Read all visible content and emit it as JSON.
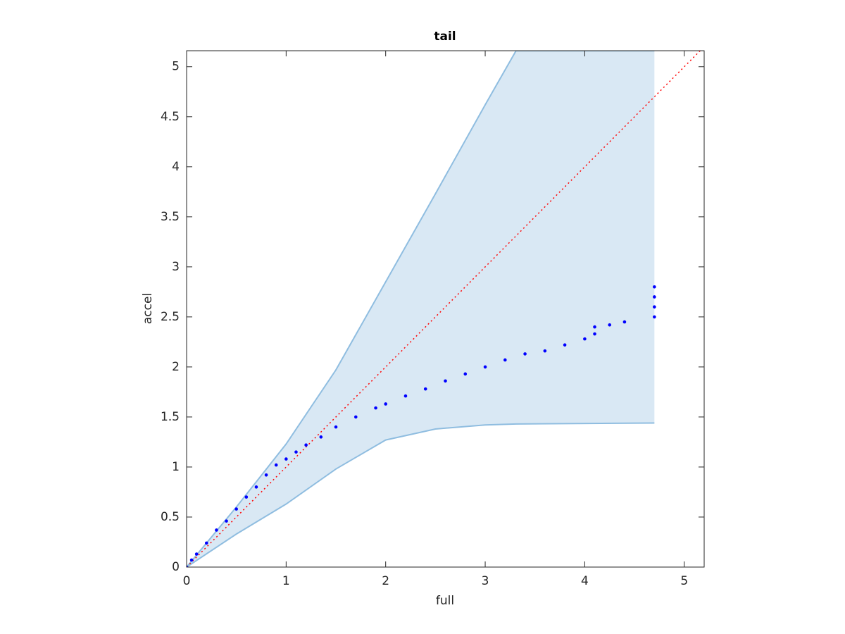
{
  "chart_data": {
    "type": "scatter",
    "title": "tail",
    "xlabel": "full",
    "ylabel": "accel",
    "xlim": [
      0,
      5.2
    ],
    "ylim": [
      0,
      5.16
    ],
    "xticks": [
      0,
      1,
      2,
      3,
      4,
      5
    ],
    "yticks": [
      0,
      0.5,
      1,
      1.5,
      2,
      2.5,
      3,
      3.5,
      4,
      4.5,
      5
    ],
    "band": {
      "color": "#d9e8f4",
      "edge_color": "#8fbde0",
      "x": [
        0,
        0.5,
        1,
        1.5,
        2,
        2.5,
        3,
        3.31,
        4.7
      ],
      "upper": [
        0,
        0.6,
        1.23,
        1.97,
        2.85,
        3.73,
        4.62,
        5.16,
        5.16
      ],
      "lower": [
        0,
        0.33,
        0.63,
        0.98,
        1.27,
        1.38,
        1.42,
        1.43,
        1.44
      ]
    },
    "reference_line": {
      "color": "#ff0000",
      "x": [
        0,
        5.16
      ],
      "y": [
        0,
        5.16
      ]
    },
    "series": [
      {
        "color": "#0000ff",
        "x": [
          0,
          0.05,
          0.1,
          0.2,
          0.3,
          0.4,
          0.5,
          0.6,
          0.7,
          0.8,
          0.9,
          1.0,
          1.1,
          1.2,
          1.35,
          1.5,
          1.7,
          1.9,
          2.0,
          2.2,
          2.4,
          2.6,
          2.8,
          3.0,
          3.2,
          3.4,
          3.6,
          3.8,
          4.0,
          4.1,
          4.1,
          4.25,
          4.4,
          4.7,
          4.7,
          4.7,
          4.7
        ],
        "values": [
          0,
          0.07,
          0.13,
          0.24,
          0.37,
          0.46,
          0.58,
          0.7,
          0.8,
          0.92,
          1.02,
          1.08,
          1.15,
          1.22,
          1.3,
          1.4,
          1.5,
          1.59,
          1.63,
          1.71,
          1.78,
          1.86,
          1.93,
          2.0,
          2.07,
          2.13,
          2.16,
          2.22,
          2.28,
          2.33,
          2.4,
          2.42,
          2.45,
          2.5,
          2.6,
          2.7,
          2.8
        ]
      }
    ]
  }
}
